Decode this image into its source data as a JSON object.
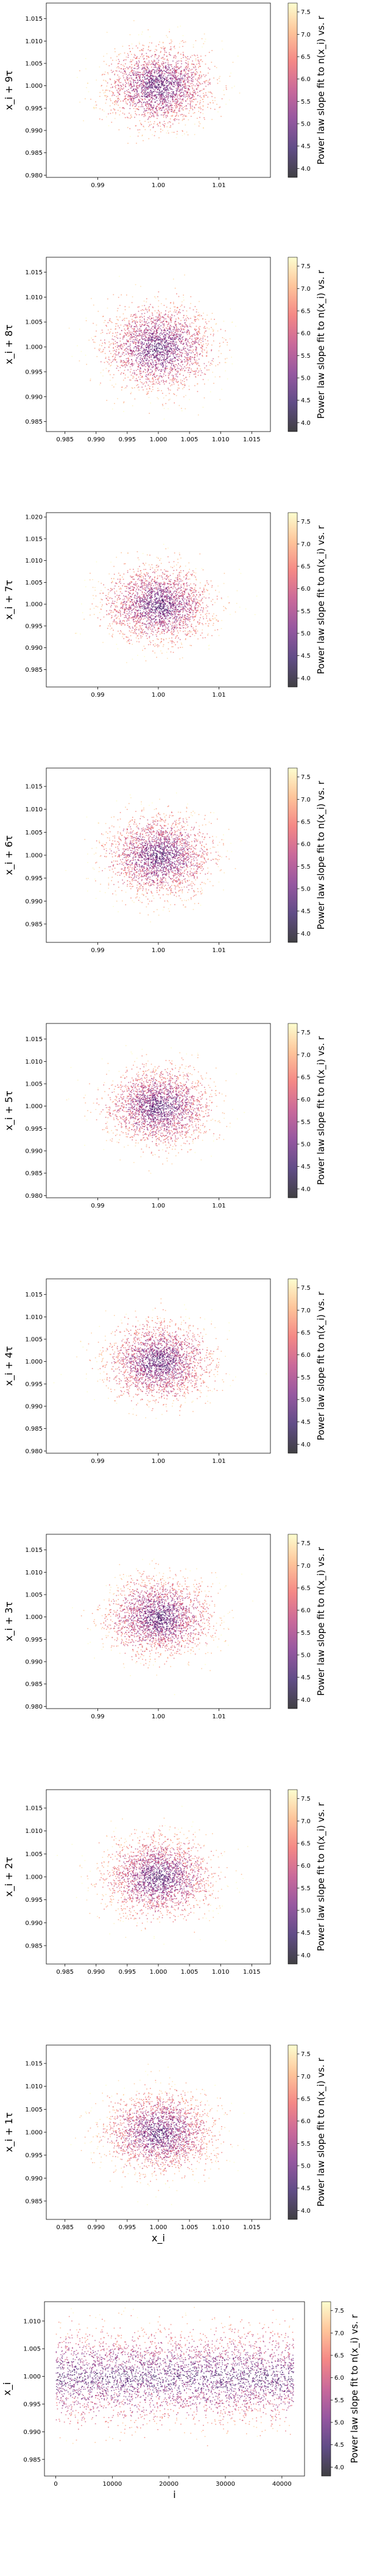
{
  "colormap": [
    "#000004",
    "#2c115f",
    "#721f81",
    "#b73779",
    "#f1605d",
    "#feb078",
    "#fcfdbf"
  ],
  "chart_data": [
    {
      "type": "scatter",
      "xlabel": "",
      "ylabel": "x_i + 9τ",
      "xticks": [
        "0.99",
        "1.00",
        "1.01"
      ],
      "xtick_values": [
        0.99,
        1.0,
        1.01
      ],
      "yticks": [
        "0.980",
        "0.985",
        "0.990",
        "0.995",
        "1.000",
        "1.005",
        "1.010",
        "1.015"
      ],
      "ytick_values": [
        0.98,
        0.985,
        0.99,
        0.995,
        1.0,
        1.005,
        1.01,
        1.015
      ],
      "xlim": [
        0.9815,
        1.0185
      ],
      "ylim": [
        0.9795,
        1.0185
      ],
      "center": [
        1.0,
        1.0
      ],
      "spread": 0.0042,
      "n_points": 2400,
      "colorbar": {
        "label": "Power law slope fit to n(x_i) vs. r",
        "ticks": [
          "4.0",
          "4.5",
          "5.0",
          "5.5",
          "6.0",
          "6.5",
          "7.0",
          "7.5"
        ],
        "tick_values": [
          4.0,
          4.5,
          5.0,
          5.5,
          6.0,
          6.5,
          7.0,
          7.5
        ],
        "range": [
          3.8,
          7.7
        ]
      }
    },
    {
      "type": "scatter",
      "xlabel": "",
      "ylabel": "x_i + 8τ",
      "xticks": [
        "0.985",
        "0.990",
        "0.995",
        "1.000",
        "1.005",
        "1.010",
        "1.015"
      ],
      "xtick_values": [
        0.985,
        0.99,
        0.995,
        1.0,
        1.005,
        1.01,
        1.015
      ],
      "yticks": [
        "0.985",
        "0.990",
        "0.995",
        "1.000",
        "1.005",
        "1.010",
        "1.015"
      ],
      "ytick_values": [
        0.985,
        0.99,
        0.995,
        1.0,
        1.005,
        1.01,
        1.015
      ],
      "xlim": [
        0.982,
        1.018
      ],
      "ylim": [
        0.983,
        1.018
      ],
      "center": [
        1.0,
        1.0
      ],
      "spread": 0.0042,
      "n_points": 2400,
      "colorbar": {
        "label": "Power law slope fit to n(x_i) vs. r",
        "ticks": [
          "4.0",
          "4.5",
          "5.0",
          "5.5",
          "6.0",
          "6.5",
          "7.0",
          "7.5"
        ],
        "tick_values": [
          4.0,
          4.5,
          5.0,
          5.5,
          6.0,
          6.5,
          7.0,
          7.5
        ],
        "range": [
          3.8,
          7.7
        ]
      }
    },
    {
      "type": "scatter",
      "xlabel": "",
      "ylabel": "x_i + 7τ",
      "xticks": [
        "0.99",
        "1.00",
        "1.01"
      ],
      "xtick_values": [
        0.99,
        1.0,
        1.01
      ],
      "yticks": [
        "0.985",
        "0.990",
        "0.995",
        "1.000",
        "1.005",
        "1.010",
        "1.015",
        "1.020"
      ],
      "ytick_values": [
        0.985,
        0.99,
        0.995,
        1.0,
        1.005,
        1.01,
        1.015,
        1.02
      ],
      "xlim": [
        0.9815,
        1.0185
      ],
      "ylim": [
        0.981,
        1.021
      ],
      "center": [
        1.0,
        1.0
      ],
      "spread": 0.0042,
      "n_points": 2400,
      "colorbar": {
        "label": "Power law slope fit to n(x_i) vs. r",
        "ticks": [
          "4.0",
          "4.5",
          "5.0",
          "5.5",
          "6.0",
          "6.5",
          "7.0",
          "7.5"
        ],
        "tick_values": [
          4.0,
          4.5,
          5.0,
          5.5,
          6.0,
          6.5,
          7.0,
          7.5
        ],
        "range": [
          3.8,
          7.7
        ]
      }
    },
    {
      "type": "scatter",
      "xlabel": "",
      "ylabel": "x_i + 6τ",
      "xticks": [
        "0.99",
        "1.00",
        "1.01"
      ],
      "xtick_values": [
        0.99,
        1.0,
        1.01
      ],
      "yticks": [
        "0.985",
        "0.990",
        "0.995",
        "1.000",
        "1.005",
        "1.010",
        "1.015"
      ],
      "ytick_values": [
        0.985,
        0.99,
        0.995,
        1.0,
        1.005,
        1.01,
        1.015
      ],
      "xlim": [
        0.9815,
        1.0185
      ],
      "ylim": [
        0.981,
        1.019
      ],
      "center": [
        1.0,
        1.0
      ],
      "spread": 0.0042,
      "n_points": 2400,
      "colorbar": {
        "label": "Power law slope fit to n(x_i) vs. r",
        "ticks": [
          "4.0",
          "4.5",
          "5.0",
          "5.5",
          "6.0",
          "6.5",
          "7.0",
          "7.5"
        ],
        "tick_values": [
          4.0,
          4.5,
          5.0,
          5.5,
          6.0,
          6.5,
          7.0,
          7.5
        ],
        "range": [
          3.8,
          7.7
        ]
      }
    },
    {
      "type": "scatter",
      "xlabel": "",
      "ylabel": "x_i + 5τ",
      "xticks": [
        "0.99",
        "1.00",
        "1.01"
      ],
      "xtick_values": [
        0.99,
        1.0,
        1.01
      ],
      "yticks": [
        "0.980",
        "0.985",
        "0.990",
        "0.995",
        "1.000",
        "1.005",
        "1.010",
        "1.015"
      ],
      "ytick_values": [
        0.98,
        0.985,
        0.99,
        0.995,
        1.0,
        1.005,
        1.01,
        1.015
      ],
      "xlim": [
        0.9815,
        1.0185
      ],
      "ylim": [
        0.9795,
        1.0185
      ],
      "center": [
        1.0,
        1.0
      ],
      "spread": 0.0042,
      "n_points": 2400,
      "colorbar": {
        "label": "Power law slope fit to n(x_i) vs. r",
        "ticks": [
          "4.0",
          "4.5",
          "5.0",
          "5.5",
          "6.0",
          "6.5",
          "7.0",
          "7.5"
        ],
        "tick_values": [
          4.0,
          4.5,
          5.0,
          5.5,
          6.0,
          6.5,
          7.0,
          7.5
        ],
        "range": [
          3.8,
          7.7
        ]
      }
    },
    {
      "type": "scatter",
      "xlabel": "",
      "ylabel": "x_i + 4τ",
      "xticks": [
        "0.99",
        "1.00",
        "1.01"
      ],
      "xtick_values": [
        0.99,
        1.0,
        1.01
      ],
      "yticks": [
        "0.980",
        "0.985",
        "0.990",
        "0.995",
        "1.000",
        "1.005",
        "1.010",
        "1.015"
      ],
      "ytick_values": [
        0.98,
        0.985,
        0.99,
        0.995,
        1.0,
        1.005,
        1.01,
        1.015
      ],
      "xlim": [
        0.9815,
        1.0185
      ],
      "ylim": [
        0.9795,
        1.0185
      ],
      "center": [
        1.0,
        1.0
      ],
      "spread": 0.0042,
      "n_points": 2400,
      "colorbar": {
        "label": "Power law slope fit to n(x_i) vs. r",
        "ticks": [
          "4.0",
          "4.5",
          "5.0",
          "5.5",
          "6.0",
          "6.5",
          "7.0",
          "7.5"
        ],
        "tick_values": [
          4.0,
          4.5,
          5.0,
          5.5,
          6.0,
          6.5,
          7.0,
          7.5
        ],
        "range": [
          3.8,
          7.7
        ]
      }
    },
    {
      "type": "scatter",
      "xlabel": "",
      "ylabel": "x_i + 3τ",
      "xticks": [
        "0.99",
        "1.00",
        "1.01"
      ],
      "xtick_values": [
        0.99,
        1.0,
        1.01
      ],
      "yticks": [
        "0.980",
        "0.985",
        "0.990",
        "0.995",
        "1.000",
        "1.005",
        "1.010",
        "1.015"
      ],
      "ytick_values": [
        0.98,
        0.985,
        0.99,
        0.995,
        1.0,
        1.005,
        1.01,
        1.015
      ],
      "xlim": [
        0.9815,
        1.0185
      ],
      "ylim": [
        0.9795,
        1.0185
      ],
      "center": [
        1.0,
        1.0
      ],
      "spread": 0.0042,
      "n_points": 2400,
      "colorbar": {
        "label": "Power law slope fit to n(x_i) vs. r",
        "ticks": [
          "4.0",
          "4.5",
          "5.0",
          "5.5",
          "6.0",
          "6.5",
          "7.0",
          "7.5"
        ],
        "tick_values": [
          4.0,
          4.5,
          5.0,
          5.5,
          6.0,
          6.5,
          7.0,
          7.5
        ],
        "range": [
          3.8,
          7.7
        ]
      }
    },
    {
      "type": "scatter",
      "xlabel": "",
      "ylabel": "x_i + 2τ",
      "xticks": [
        "0.985",
        "0.990",
        "0.995",
        "1.000",
        "1.005",
        "1.010",
        "1.015"
      ],
      "xtick_values": [
        0.985,
        0.99,
        0.995,
        1.0,
        1.005,
        1.01,
        1.015
      ],
      "yticks": [
        "0.985",
        "0.990",
        "0.995",
        "1.000",
        "1.005",
        "1.010",
        "1.015"
      ],
      "ytick_values": [
        0.985,
        0.99,
        0.995,
        1.0,
        1.005,
        1.01,
        1.015
      ],
      "xlim": [
        0.982,
        1.018
      ],
      "ylim": [
        0.981,
        1.019
      ],
      "center": [
        1.0,
        1.0
      ],
      "spread": 0.0042,
      "n_points": 2400,
      "colorbar": {
        "label": "Power law slope fit to n(x_i) vs. r",
        "ticks": [
          "4.0",
          "4.5",
          "5.0",
          "5.5",
          "6.0",
          "6.5",
          "7.0",
          "7.5"
        ],
        "tick_values": [
          4.0,
          4.5,
          5.0,
          5.5,
          6.0,
          6.5,
          7.0,
          7.5
        ],
        "range": [
          3.8,
          7.7
        ]
      }
    },
    {
      "type": "scatter",
      "xlabel": "x_i",
      "ylabel": "x_i + 1τ",
      "xticks": [
        "0.985",
        "0.990",
        "0.995",
        "1.000",
        "1.005",
        "1.010",
        "1.015"
      ],
      "xtick_values": [
        0.985,
        0.99,
        0.995,
        1.0,
        1.005,
        1.01,
        1.015
      ],
      "yticks": [
        "0.985",
        "0.990",
        "0.995",
        "1.000",
        "1.005",
        "1.010",
        "1.015"
      ],
      "ytick_values": [
        0.985,
        0.99,
        0.995,
        1.0,
        1.005,
        1.01,
        1.015
      ],
      "xlim": [
        0.982,
        1.018
      ],
      "ylim": [
        0.981,
        1.019
      ],
      "center": [
        1.0,
        1.0
      ],
      "spread": 0.0042,
      "n_points": 2400,
      "colorbar": {
        "label": "Power law slope fit to n(x_i) vs. r",
        "ticks": [
          "4.0",
          "4.5",
          "5.0",
          "5.5",
          "6.0",
          "6.5",
          "7.0",
          "7.5"
        ],
        "tick_values": [
          4.0,
          4.5,
          5.0,
          5.5,
          6.0,
          6.5,
          7.0,
          7.5
        ],
        "range": [
          3.8,
          7.7
        ]
      }
    },
    {
      "type": "scatter",
      "xlabel": "i",
      "ylabel": "x_i",
      "xticks": [
        "0",
        "10000",
        "20000",
        "30000",
        "40000"
      ],
      "xtick_values": [
        0,
        10000,
        20000,
        30000,
        40000
      ],
      "yticks": [
        "0.985",
        "0.990",
        "0.995",
        "1.000",
        "1.005",
        "1.010"
      ],
      "ytick_values": [
        0.985,
        0.99,
        0.995,
        1.0,
        1.005,
        1.01
      ],
      "xlim": [
        -2000,
        44000
      ],
      "ylim": [
        0.982,
        1.0135
      ],
      "center": [
        21000,
        1.0
      ],
      "spread": 0.0042,
      "n_points": 4000,
      "colorbar": {
        "label": "Power law slope fit to n(x_i) vs. r",
        "ticks": [
          "4.0",
          "4.5",
          "5.0",
          "5.5",
          "6.0",
          "6.5",
          "7.0",
          "7.5"
        ],
        "tick_values": [
          4.0,
          4.5,
          5.0,
          5.5,
          6.0,
          6.5,
          7.0,
          7.5
        ],
        "range": [
          3.8,
          7.7
        ]
      }
    }
  ]
}
